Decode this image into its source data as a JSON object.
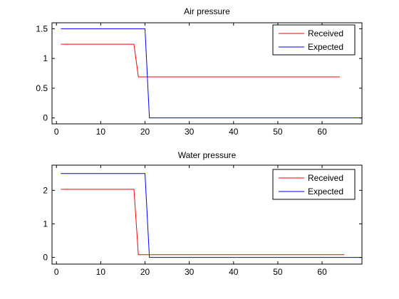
{
  "chart_data": [
    {
      "type": "line",
      "title": "Air pressure",
      "xlabel": "",
      "ylabel": "",
      "xlim": [
        -1,
        69
      ],
      "ylim": [
        -0.1,
        1.6
      ],
      "xticks": [
        0,
        10,
        20,
        30,
        40,
        50,
        60
      ],
      "yticks": [
        0,
        0.5,
        1,
        1.5
      ],
      "ytick_labels": [
        "0",
        "0.5",
        "1",
        "1.5"
      ],
      "grid": false,
      "legend_position": "top-right",
      "series": [
        {
          "name": "Received",
          "color": "#ff0000",
          "points": [
            [
              1,
              1.24
            ],
            [
              17.5,
              1.24
            ],
            [
              18.5,
              0.69
            ],
            [
              64,
              0.69
            ]
          ]
        },
        {
          "name": "Expected",
          "color": "#0000ff",
          "points": [
            [
              1,
              1.5
            ],
            [
              20,
              1.5
            ],
            [
              21,
              0
            ],
            [
              69,
              0
            ]
          ]
        }
      ]
    },
    {
      "type": "line",
      "title": "Water pressure",
      "xlabel": "",
      "ylabel": "",
      "xlim": [
        -1,
        69
      ],
      "ylim": [
        -0.2,
        2.75
      ],
      "xticks": [
        0,
        10,
        20,
        30,
        40,
        50,
        60
      ],
      "yticks": [
        0,
        1,
        2
      ],
      "ytick_labels": [
        "0",
        "1",
        "2"
      ],
      "grid": false,
      "legend_position": "top-right",
      "series": [
        {
          "name": "Received",
          "color": "#ff0000",
          "points": [
            [
              1,
              2.03
            ],
            [
              17.5,
              2.03
            ],
            [
              18.5,
              0.08
            ],
            [
              65,
              0.08
            ]
          ]
        },
        {
          "name": "Expected",
          "color": "#0000ff",
          "points": [
            [
              1,
              2.5
            ],
            [
              20,
              2.5
            ],
            [
              21,
              0
            ],
            [
              69,
              0
            ]
          ]
        }
      ]
    }
  ]
}
